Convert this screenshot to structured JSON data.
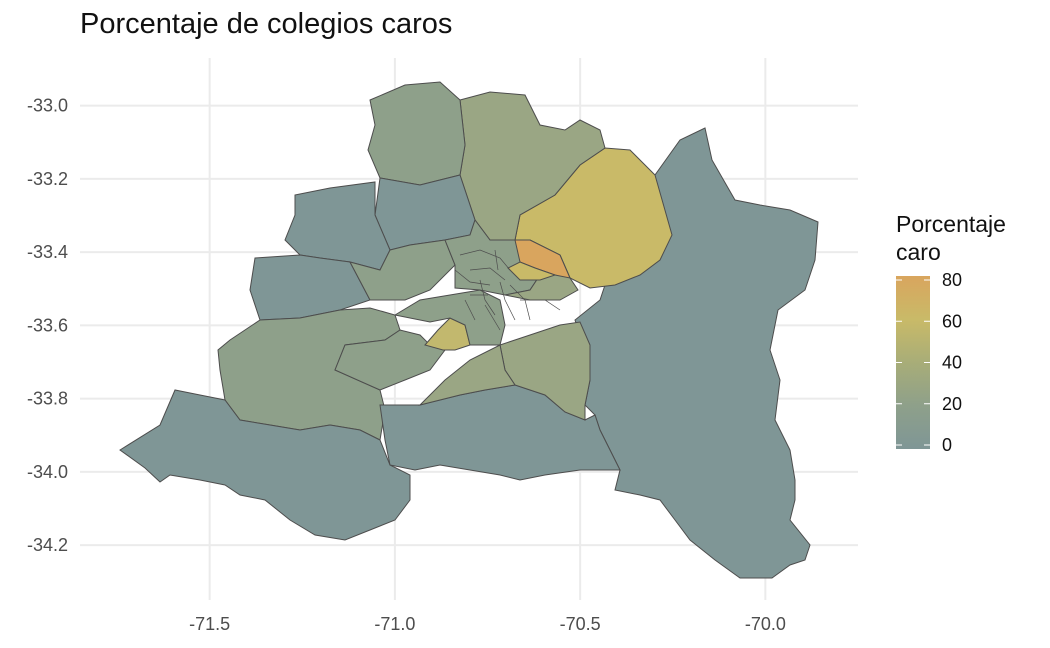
{
  "title": "Porcentaje de colegios caros",
  "chart_data": {
    "type": "choropleth-map",
    "x_ticks": [
      -71.5,
      -71.0,
      -70.5,
      -70.0
    ],
    "y_ticks": [
      -33.0,
      -33.2,
      -33.4,
      -33.6,
      -33.8,
      -34.0,
      -34.2
    ],
    "x_tick_labels": [
      "-71.5",
      "-71.0",
      "-70.5",
      "-70.0"
    ],
    "y_tick_labels": [
      "-33.0",
      "-33.2",
      "-33.4",
      "-33.6",
      "-33.8",
      "-34.0",
      "-34.2"
    ],
    "xlim": [
      -71.85,
      -69.75
    ],
    "ylim": [
      -34.35,
      -32.87
    ],
    "grid": true,
    "legend": {
      "title_line1": "Porcentaje",
      "title_line2": "caro",
      "min": 0,
      "max": 80,
      "breaks": [
        0,
        20,
        40,
        60,
        80
      ],
      "break_labels": [
        "0",
        "20",
        "40",
        "60",
        "80"
      ],
      "colors": [
        "#7f9696",
        "#8ea08a",
        "#a8ad78",
        "#c9ba68",
        "#d9a55e"
      ],
      "placement": "right"
    }
  },
  "colors": {
    "low": "#7f9696",
    "mid": "#a8ad78",
    "high": "#d9a55e",
    "border": "#4d4d4d",
    "grid": "#ebebeb",
    "axis_text": "#4d4d4d"
  }
}
